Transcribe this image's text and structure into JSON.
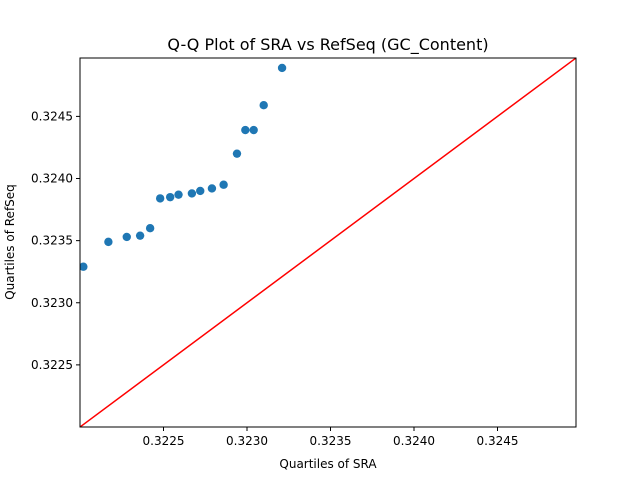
{
  "chart_data": {
    "type": "scatter",
    "title": "Q-Q Plot of SRA vs RefSeq (GC_Content)",
    "xlabel": "Quartiles of SRA",
    "ylabel": "Quartiles of RefSeq",
    "xlim": [
      0.322,
      0.32497
    ],
    "ylim": [
      0.322,
      0.32497
    ],
    "x_ticks": [
      {
        "value": 0.3225,
        "label": "0.3225"
      },
      {
        "value": 0.323,
        "label": "0.3230"
      },
      {
        "value": 0.3235,
        "label": "0.3235"
      },
      {
        "value": 0.324,
        "label": "0.3240"
      },
      {
        "value": 0.3245,
        "label": "0.3245"
      }
    ],
    "y_ticks": [
      {
        "value": 0.3225,
        "label": "0.3225"
      },
      {
        "value": 0.323,
        "label": "0.3230"
      },
      {
        "value": 0.3235,
        "label": "0.3235"
      },
      {
        "value": 0.324,
        "label": "0.3240"
      },
      {
        "value": 0.3245,
        "label": "0.3245"
      }
    ],
    "grid": false,
    "points": [
      {
        "x": 0.32202,
        "y": 0.32329
      },
      {
        "x": 0.32217,
        "y": 0.32349
      },
      {
        "x": 0.32228,
        "y": 0.32353
      },
      {
        "x": 0.32236,
        "y": 0.32354
      },
      {
        "x": 0.32242,
        "y": 0.3236
      },
      {
        "x": 0.32248,
        "y": 0.32384
      },
      {
        "x": 0.32254,
        "y": 0.32385
      },
      {
        "x": 0.32259,
        "y": 0.32387
      },
      {
        "x": 0.32267,
        "y": 0.32388
      },
      {
        "x": 0.32272,
        "y": 0.3239
      },
      {
        "x": 0.32279,
        "y": 0.32392
      },
      {
        "x": 0.32286,
        "y": 0.32395
      },
      {
        "x": 0.32294,
        "y": 0.3242
      },
      {
        "x": 0.32299,
        "y": 0.32439
      },
      {
        "x": 0.32304,
        "y": 0.32439
      },
      {
        "x": 0.3231,
        "y": 0.32459
      },
      {
        "x": 0.32321,
        "y": 0.32489
      }
    ],
    "reference_line": {
      "x": [
        0.322,
        0.32497
      ],
      "y": [
        0.322,
        0.32497
      ],
      "color": "#ff0000"
    },
    "colors": {
      "points": "#1f77b4",
      "reference_line": "#ff0000",
      "axes": "#000000"
    }
  }
}
